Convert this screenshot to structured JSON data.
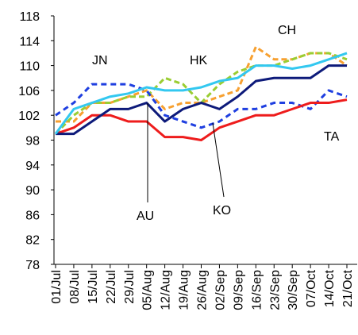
{
  "chart_data": {
    "type": "line",
    "categories": [
      "01/Jul",
      "08/Jul",
      "15/Jul",
      "22/Jul",
      "29/Jul",
      "05/Aug",
      "12/Aug",
      "19/Aug",
      "26/Aug",
      "02/Sep",
      "09/Sep",
      "16/Sep",
      "23/Sep",
      "30/Sep",
      "07/Oct",
      "14/Oct",
      "21/Oct"
    ],
    "series": [
      {
        "color": "#f7a030",
        "dash": "7,4",
        "values": [
          101,
          101,
          104,
          104,
          105,
          106,
          103,
          104,
          104,
          105,
          106,
          113,
          111,
          111,
          112,
          112,
          110
        ]
      },
      {
        "color": "#9acd32",
        "dash": "7,4",
        "values": [
          99,
          102,
          104,
          104,
          105,
          105,
          108,
          107,
          104,
          107,
          109,
          110,
          110,
          111,
          112,
          112,
          111
        ]
      },
      {
        "color": "#1f3fe0",
        "dash": "7,5",
        "values": [
          102,
          104,
          107,
          107,
          107,
          106,
          102,
          101,
          100,
          101,
          103,
          103,
          104,
          104,
          103,
          106,
          105
        ]
      },
      {
        "color": "#ee1c1c",
        "dash": null,
        "values": [
          99,
          100,
          102,
          102,
          101,
          101,
          98.5,
          98.5,
          98,
          100,
          101,
          102,
          102,
          103,
          104,
          104,
          104.5
        ]
      },
      {
        "color": "#0d1a7a",
        "dash": null,
        "values": [
          99,
          99,
          101,
          103,
          103,
          104,
          101,
          103,
          104,
          103,
          105,
          107.5,
          108,
          108,
          108,
          110,
          110
        ]
      },
      {
        "color": "#33c8f0",
        "dash": null,
        "values": [
          99,
          103,
          104,
          105,
          105.5,
          106.5,
          106,
          106,
          106.5,
          107.5,
          108,
          110,
          110,
          109.5,
          110,
          111,
          112
        ]
      }
    ],
    "annotations": [
      "CH",
      "JN",
      "HK",
      "AU",
      "KO",
      "TA"
    ],
    "ylim": [
      78,
      118
    ],
    "yticks": [
      78,
      82,
      86,
      90,
      94,
      98,
      102,
      106,
      110,
      114,
      118
    ]
  }
}
